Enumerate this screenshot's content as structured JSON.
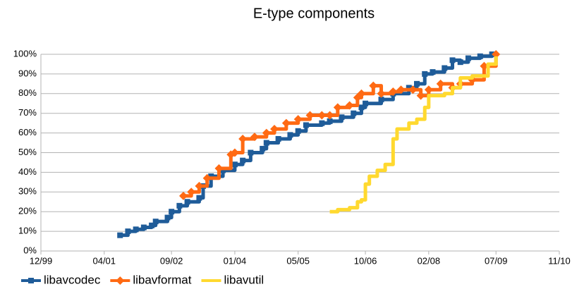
{
  "chart_data": {
    "type": "line",
    "title": "E-type components",
    "xlim": [
      "1999-12",
      "2010-11"
    ],
    "xticks": [
      {
        "value": "1999-12",
        "label": "12/99"
      },
      {
        "value": "2001-04",
        "label": "04/01"
      },
      {
        "value": "2002-09",
        "label": "09/02"
      },
      {
        "value": "2004-01",
        "label": "01/04"
      },
      {
        "value": "2005-05",
        "label": "05/05"
      },
      {
        "value": "2006-10",
        "label": "10/06"
      },
      {
        "value": "2008-02",
        "label": "02/08"
      },
      {
        "value": "2009-07",
        "label": "07/09"
      },
      {
        "value": "2010-11",
        "label": "11/10"
      }
    ],
    "ylim": [
      0,
      100
    ],
    "yticks": [
      {
        "value": 0,
        "label": "0%"
      },
      {
        "value": 10,
        "label": "10%"
      },
      {
        "value": 20,
        "label": "20%"
      },
      {
        "value": 30,
        "label": "30%"
      },
      {
        "value": 40,
        "label": "40%"
      },
      {
        "value": 50,
        "label": "50%"
      },
      {
        "value": 60,
        "label": "60%"
      },
      {
        "value": 70,
        "label": "70%"
      },
      {
        "value": 80,
        "label": "80%"
      },
      {
        "value": 90,
        "label": "90%"
      },
      {
        "value": 100,
        "label": "100%"
      }
    ],
    "grid": true,
    "legend": "bottom",
    "series": [
      {
        "name": "libavcodec",
        "color": "#1f5c99",
        "marker": "square",
        "x": [
          "2001-08",
          "2001-10",
          "2001-12",
          "2002-02",
          "2002-04",
          "2002-05",
          "2002-08",
          "2002-09",
          "2002-11",
          "2003-01",
          "2003-04",
          "2003-05",
          "2003-07",
          "2003-10",
          "2004-01",
          "2004-03",
          "2004-05",
          "2004-08",
          "2004-09",
          "2004-12",
          "2005-03",
          "2005-05",
          "2005-07",
          "2005-11",
          "2006-01",
          "2006-04",
          "2006-07",
          "2006-09",
          "2006-10",
          "2007-02",
          "2007-05",
          "2007-09",
          "2007-11",
          "2008-01",
          "2008-03",
          "2008-06",
          "2008-08",
          "2008-10",
          "2008-12",
          "2009-03",
          "2009-06"
        ],
        "values": [
          8,
          10,
          11,
          12,
          13,
          15,
          17,
          20,
          23,
          25,
          27,
          33,
          38,
          41,
          44,
          46,
          50,
          52,
          55,
          57,
          59,
          61,
          64,
          65,
          66,
          68,
          70,
          73,
          75,
          77,
          80,
          83,
          85,
          90,
          91,
          93,
          97,
          96,
          98,
          99,
          100
        ]
      },
      {
        "name": "libavformat",
        "color": "#ff6a13",
        "marker": "diamond",
        "x": [
          "2002-12",
          "2003-02",
          "2003-04",
          "2003-06",
          "2003-09",
          "2003-12",
          "2004-01",
          "2004-03",
          "2004-06",
          "2004-09",
          "2004-11",
          "2005-02",
          "2005-05",
          "2005-08",
          "2005-11",
          "2006-01",
          "2006-03",
          "2006-06",
          "2006-08",
          "2006-09",
          "2006-12",
          "2007-02",
          "2007-05",
          "2007-07",
          "2007-10",
          "2007-12",
          "2008-02",
          "2008-05",
          "2008-08",
          "2008-10",
          "2009-01",
          "2009-04",
          "2009-07"
        ],
        "values": [
          28,
          30,
          33,
          37,
          42,
          49,
          50,
          57,
          58,
          60,
          62,
          65,
          67,
          69,
          69,
          69,
          73,
          74,
          78,
          80,
          84,
          80,
          81,
          82,
          82,
          79,
          82,
          85,
          83,
          85,
          87,
          94,
          100
        ]
      },
      {
        "name": "libavutil",
        "color": "#ffd92f",
        "marker": "none",
        "x": [
          "2006-01",
          "2006-03",
          "2006-06",
          "2006-08",
          "2006-09",
          "2006-10",
          "2006-11",
          "2007-01",
          "2007-03",
          "2007-05",
          "2007-06",
          "2007-09",
          "2007-11",
          "2008-01",
          "2008-02",
          "2008-06",
          "2008-08",
          "2008-10",
          "2009-01",
          "2009-05",
          "2009-07"
        ],
        "values": [
          20,
          21,
          22,
          25,
          26,
          34,
          38,
          41,
          44,
          57,
          62,
          65,
          67,
          73,
          79,
          80,
          83,
          88,
          89,
          95,
          99
        ]
      }
    ]
  }
}
